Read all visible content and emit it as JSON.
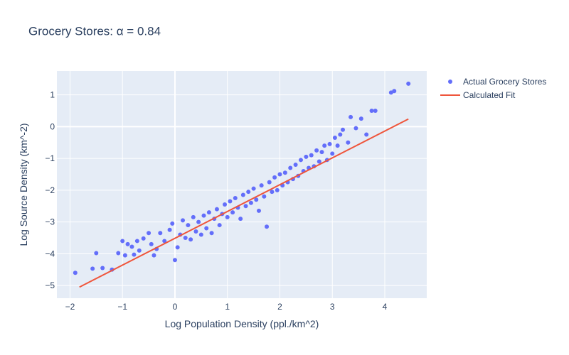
{
  "chart_data": {
    "type": "scatter",
    "title": "Grocery Stores: α = 0.84",
    "xlabel": "Log Population Density (ppl./km^2)",
    "ylabel": "Log Source Density (km^-2)",
    "xlim": [
      -2.25,
      4.8
    ],
    "ylim": [
      -5.4,
      1.75
    ],
    "x_ticks": [
      -2,
      -1,
      0,
      1,
      2,
      3,
      4
    ],
    "y_ticks": [
      -5,
      -4,
      -3,
      -2,
      -1,
      0,
      1
    ],
    "x_tick_labels": [
      "−2",
      "−1",
      "0",
      "1",
      "2",
      "3",
      "4"
    ],
    "y_tick_labels": [
      "−5",
      "−4",
      "−3",
      "−2",
      "−1",
      "0",
      "1"
    ],
    "grid": true,
    "legend_position": "top-right",
    "colors": {
      "scatter": "#636efa",
      "fit": "#ef553b",
      "plot_bg": "#e5ecf6",
      "grid": "#ffffff"
    },
    "series": [
      {
        "name": "Actual Grocery Stores",
        "mode": "markers",
        "points": [
          [
            -1.9,
            -4.6
          ],
          [
            -1.57,
            -4.47
          ],
          [
            -1.5,
            -3.98
          ],
          [
            -1.38,
            -4.45
          ],
          [
            -1.2,
            -4.5
          ],
          [
            -1.08,
            -3.98
          ],
          [
            -1.0,
            -3.6
          ],
          [
            -0.95,
            -4.05
          ],
          [
            -0.9,
            -3.7
          ],
          [
            -0.82,
            -3.78
          ],
          [
            -0.78,
            -4.03
          ],
          [
            -0.72,
            -3.6
          ],
          [
            -0.68,
            -3.9
          ],
          [
            -0.6,
            -3.52
          ],
          [
            -0.5,
            -3.35
          ],
          [
            -0.45,
            -3.7
          ],
          [
            -0.4,
            -4.05
          ],
          [
            -0.35,
            -3.85
          ],
          [
            -0.28,
            -3.35
          ],
          [
            -0.2,
            -3.6
          ],
          [
            -0.1,
            -3.25
          ],
          [
            -0.05,
            -3.05
          ],
          [
            0.0,
            -4.2
          ],
          [
            0.05,
            -3.8
          ],
          [
            0.1,
            -3.4
          ],
          [
            0.15,
            -2.95
          ],
          [
            0.2,
            -3.5
          ],
          [
            0.25,
            -3.1
          ],
          [
            0.3,
            -3.55
          ],
          [
            0.35,
            -2.85
          ],
          [
            0.4,
            -3.3
          ],
          [
            0.45,
            -3.0
          ],
          [
            0.5,
            -3.4
          ],
          [
            0.55,
            -2.8
          ],
          [
            0.6,
            -3.2
          ],
          [
            0.65,
            -2.7
          ],
          [
            0.7,
            -3.35
          ],
          [
            0.75,
            -2.9
          ],
          [
            0.8,
            -2.6
          ],
          [
            0.85,
            -3.1
          ],
          [
            0.9,
            -2.75
          ],
          [
            0.95,
            -2.45
          ],
          [
            1.0,
            -2.85
          ],
          [
            1.05,
            -2.35
          ],
          [
            1.1,
            -2.7
          ],
          [
            1.15,
            -2.25
          ],
          [
            1.2,
            -2.55
          ],
          [
            1.25,
            -2.9
          ],
          [
            1.3,
            -2.15
          ],
          [
            1.35,
            -2.5
          ],
          [
            1.4,
            -2.05
          ],
          [
            1.45,
            -2.4
          ],
          [
            1.5,
            -1.95
          ],
          [
            1.55,
            -2.3
          ],
          [
            1.6,
            -2.65
          ],
          [
            1.65,
            -1.85
          ],
          [
            1.7,
            -2.2
          ],
          [
            1.75,
            -3.15
          ],
          [
            1.8,
            -1.75
          ],
          [
            1.85,
            -2.05
          ],
          [
            1.9,
            -1.6
          ],
          [
            1.95,
            -2.0
          ],
          [
            2.0,
            -1.5
          ],
          [
            2.05,
            -1.85
          ],
          [
            2.1,
            -1.45
          ],
          [
            2.15,
            -1.75
          ],
          [
            2.2,
            -1.3
          ],
          [
            2.25,
            -1.65
          ],
          [
            2.3,
            -1.2
          ],
          [
            2.35,
            -1.55
          ],
          [
            2.4,
            -1.05
          ],
          [
            2.45,
            -1.4
          ],
          [
            2.5,
            -0.95
          ],
          [
            2.55,
            -1.3
          ],
          [
            2.6,
            -0.9
          ],
          [
            2.65,
            -1.25
          ],
          [
            2.7,
            -0.75
          ],
          [
            2.75,
            -1.1
          ],
          [
            2.8,
            -0.8
          ],
          [
            2.85,
            -0.6
          ],
          [
            2.9,
            -1.05
          ],
          [
            2.95,
            -0.55
          ],
          [
            3.0,
            -0.85
          ],
          [
            3.05,
            -0.35
          ],
          [
            3.1,
            -0.6
          ],
          [
            3.15,
            -0.25
          ],
          [
            3.2,
            -0.1
          ],
          [
            3.3,
            -0.5
          ],
          [
            3.35,
            0.3
          ],
          [
            3.45,
            -0.05
          ],
          [
            3.55,
            0.25
          ],
          [
            3.65,
            -0.25
          ],
          [
            3.75,
            0.5
          ],
          [
            3.82,
            0.5
          ],
          [
            4.12,
            1.07
          ],
          [
            4.18,
            1.12
          ],
          [
            4.45,
            1.35
          ]
        ]
      },
      {
        "name": "Calculated Fit",
        "mode": "lines",
        "x": [
          -1.82,
          4.45
        ],
        "y": [
          -5.05,
          0.24
        ]
      }
    ]
  }
}
